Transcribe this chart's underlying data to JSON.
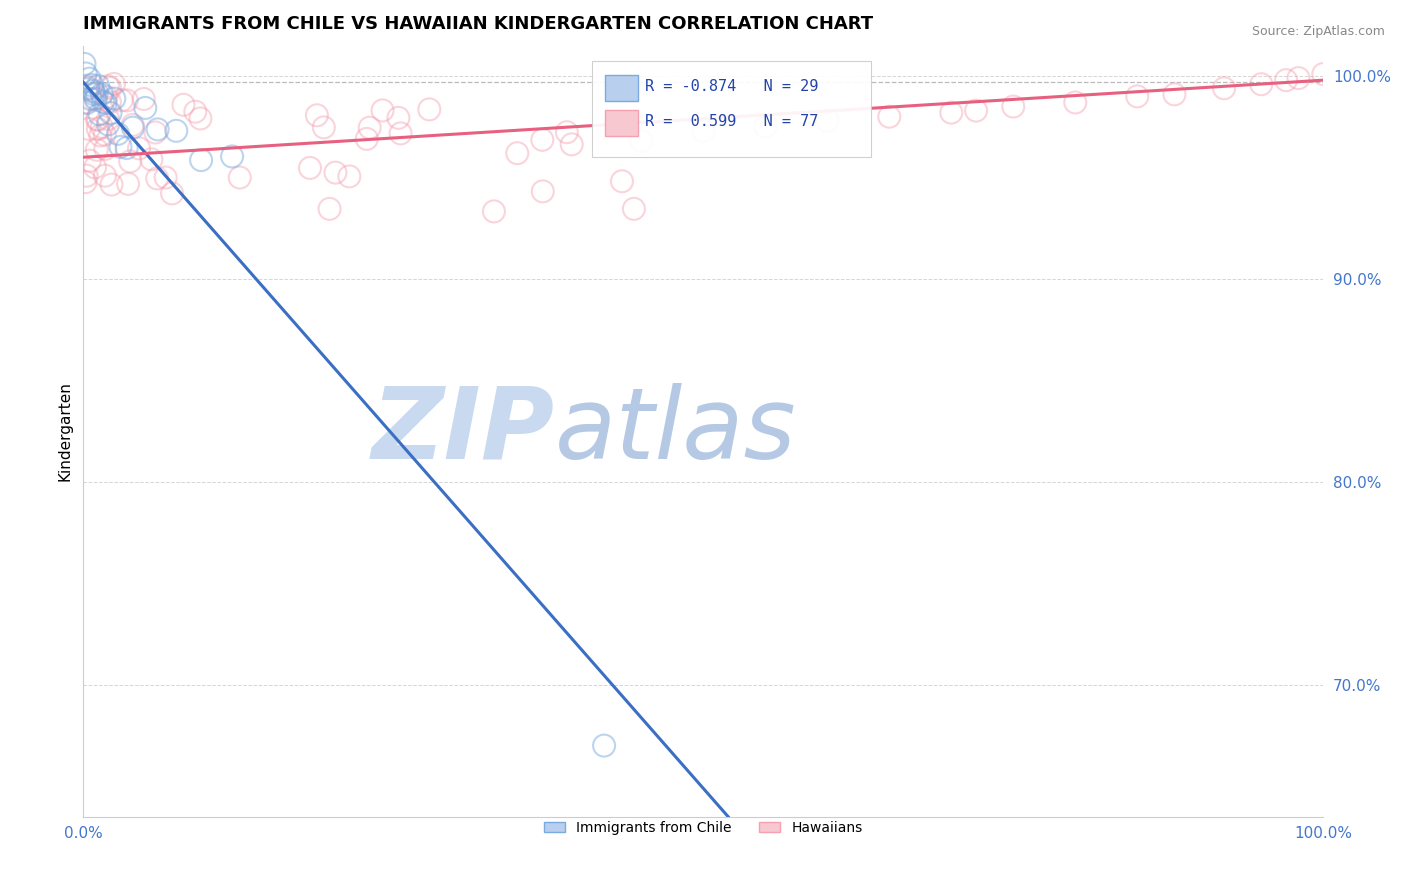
{
  "title": "IMMIGRANTS FROM CHILE VS HAWAIIAN KINDERGARTEN CORRELATION CHART",
  "source": "Source: ZipAtlas.com",
  "ylabel": "Kindergarten",
  "xlim": [
    0.0,
    1.0
  ],
  "ylim": [
    0.635,
    1.015
  ],
  "ytick_vals": [
    0.7,
    0.8,
    0.9,
    1.0
  ],
  "ytick_labels": [
    "70.0%",
    "80.0%",
    "90.0%",
    "100.0%"
  ],
  "xtick_vals": [
    0.0,
    1.0
  ],
  "xtick_labels": [
    "0.0%",
    "100.0%"
  ],
  "blue_R": -0.874,
  "blue_N": 29,
  "pink_R": 0.599,
  "pink_N": 77,
  "blue_color": "#7aabe0",
  "pink_color": "#f4a0b0",
  "trend_blue_color": "#3a6fc4",
  "trend_pink_color": "#e86080",
  "watermark_zip_color": "#c8d8f0",
  "watermark_atlas_color": "#a8c4e8",
  "dashed_line_y": 0.997,
  "blue_trend_x0": 0.0,
  "blue_trend_y0": 0.997,
  "blue_trend_x1": 0.52,
  "blue_trend_y1": 0.635,
  "pink_trend_x0": 0.0,
  "pink_trend_y0": 0.96,
  "pink_trend_x1": 1.0,
  "pink_trend_y1": 0.998,
  "legend_R_color": "#2244aa",
  "legend_box_edge": "#cccccc"
}
